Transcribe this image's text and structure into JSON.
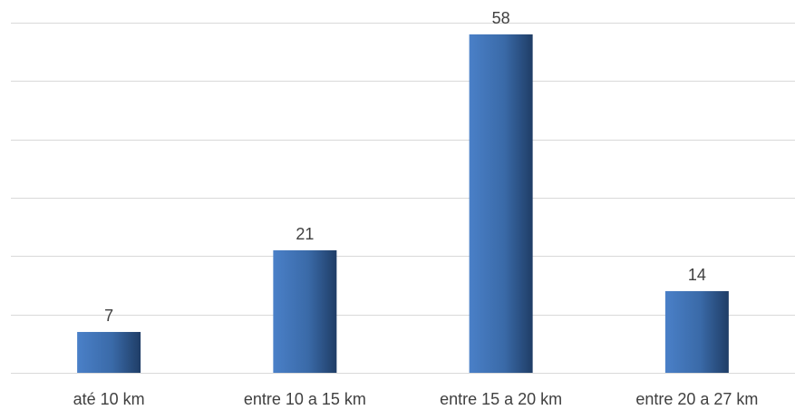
{
  "chart_data": {
    "type": "bar",
    "categories": [
      "até 10 km",
      "entre 10 a 15 km",
      "entre 15 a 20 km",
      "entre 20 a 27 km"
    ],
    "values": [
      7,
      21,
      58,
      14
    ],
    "ylim": [
      0,
      60
    ],
    "grid": true,
    "legend": "none",
    "colors": {
      "bar_light": "#4a80c8",
      "bar_dark": "#1f3d66"
    }
  }
}
